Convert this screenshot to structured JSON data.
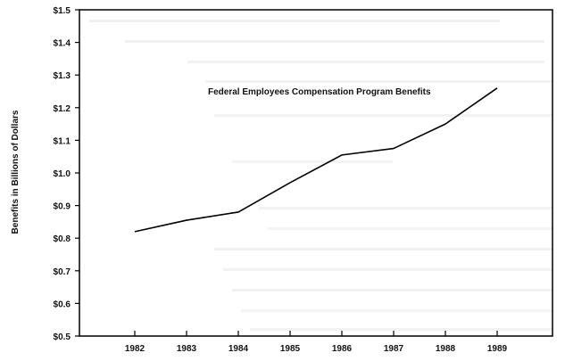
{
  "chart_data": {
    "type": "line",
    "title": "Federal Employees Compensation Program Benefits",
    "xlabel": "",
    "ylabel": "Benefits in Billions of Dollars",
    "categories": [
      "1982",
      "1983",
      "1984",
      "1985",
      "1986",
      "1987",
      "1988",
      "1989"
    ],
    "series": [
      {
        "values": [
          0.82,
          0.855,
          0.88,
          0.97,
          1.055,
          1.075,
          1.15,
          1.26
        ]
      }
    ],
    "ylim": [
      0.5,
      1.5
    ],
    "yticks": [
      0.5,
      0.6,
      0.7,
      0.8,
      0.9,
      1.0,
      1.1,
      1.2,
      1.3,
      1.4,
      1.5
    ],
    "ytick_labels": [
      "$0.5",
      "$0.6",
      "$0.7",
      "$0.8",
      "$0.9",
      "$1.0",
      "$1.1",
      "$1.2",
      "$1.3",
      "$1.4",
      "$1.5"
    ],
    "grid": false,
    "line_color": "#000000"
  }
}
